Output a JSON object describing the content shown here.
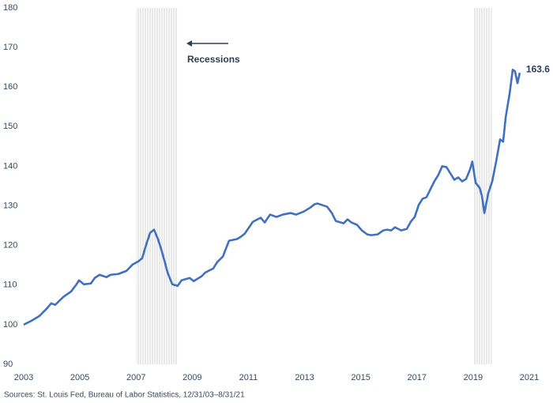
{
  "chart_data": {
    "type": "line",
    "source": "Sources: St. Louis Fed, Bureau of Labor Statistics, 12/31/03–8/31/21",
    "annotation": "Recessions",
    "recessions": [
      [
        2007.0,
        2008.5
      ],
      [
        2019.0,
        2019.66
      ]
    ],
    "xlim": [
      2003,
      2021
    ],
    "xticks": [
      2003,
      2005,
      2007,
      2009,
      2011,
      2013,
      2015,
      2017,
      2019,
      2021
    ],
    "ylim": [
      90,
      180
    ],
    "yticks": [
      90,
      100,
      110,
      120,
      130,
      140,
      150,
      160,
      170,
      180
    ],
    "grid": false,
    "end_label": true,
    "series": [
      {
        "color": "#4070c0",
        "x": [
          2003.0,
          2003.28,
          2003.56,
          2003.84,
          2003.98,
          2004.12,
          2004.41,
          2004.69,
          2004.88,
          2004.97,
          2005.14,
          2005.39,
          2005.53,
          2005.7,
          2005.95,
          2006.09,
          2006.37,
          2006.66,
          2006.88,
          2007.08,
          2007.22,
          2007.36,
          2007.5,
          2007.64,
          2007.78,
          2007.89,
          2008.01,
          2008.12,
          2008.29,
          2008.48,
          2008.62,
          2008.91,
          2009.05,
          2009.33,
          2009.47,
          2009.75,
          2009.89,
          2010.09,
          2010.31,
          2010.59,
          2010.73,
          2010.87,
          2011.16,
          2011.44,
          2011.58,
          2011.77,
          2012.0,
          2012.22,
          2012.51,
          2012.7,
          2012.98,
          2013.21,
          2013.35,
          2013.46,
          2013.63,
          2013.8,
          2013.97,
          2014.11,
          2014.39,
          2014.53,
          2014.67,
          2014.87,
          2015.04,
          2015.23,
          2015.37,
          2015.6,
          2015.8,
          2015.94,
          2016.08,
          2016.22,
          2016.44,
          2016.64,
          2016.78,
          2016.92,
          2017.06,
          2017.2,
          2017.34,
          2017.48,
          2017.62,
          2017.76,
          2017.9,
          2018.05,
          2018.19,
          2018.33,
          2018.47,
          2018.61,
          2018.75,
          2018.89,
          2018.97,
          2019.09,
          2019.23,
          2019.31,
          2019.4,
          2019.54,
          2019.68,
          2019.82,
          2019.96,
          2020.07,
          2020.16,
          2020.3,
          2020.41,
          2020.49,
          2020.58,
          2020.66
        ],
        "values": [
          100.0,
          101.0,
          102.2,
          104.2,
          105.4,
          105.0,
          107.0,
          108.4,
          110.2,
          111.2,
          110.2,
          110.4,
          111.8,
          112.6,
          112.0,
          112.6,
          112.8,
          113.6,
          115.2,
          116.0,
          116.8,
          120.2,
          123.2,
          124.0,
          121.6,
          119.2,
          116.2,
          113.2,
          110.2,
          109.8,
          111.2,
          111.8,
          111.0,
          112.2,
          113.2,
          114.2,
          115.8,
          117.2,
          121.2,
          121.6,
          122.2,
          123.0,
          126.0,
          127.0,
          125.8,
          127.8,
          127.2,
          127.8,
          128.2,
          127.8,
          128.6,
          129.6,
          130.4,
          130.6,
          130.2,
          129.8,
          128.2,
          126.2,
          125.6,
          126.6,
          125.8,
          125.2,
          123.8,
          122.8,
          122.6,
          122.8,
          123.8,
          124.0,
          123.8,
          124.6,
          123.8,
          124.2,
          126.0,
          127.2,
          130.2,
          131.8,
          132.2,
          134.2,
          136.2,
          137.8,
          140.0,
          139.8,
          138.2,
          136.6,
          137.2,
          136.2,
          136.8,
          139.2,
          141.2,
          135.8,
          134.6,
          132.6,
          128.2,
          133.2,
          136.2,
          141.2,
          146.8,
          146.2,
          152.4,
          158.4,
          164.4,
          164.0,
          161.0,
          163.6
        ]
      }
    ]
  }
}
